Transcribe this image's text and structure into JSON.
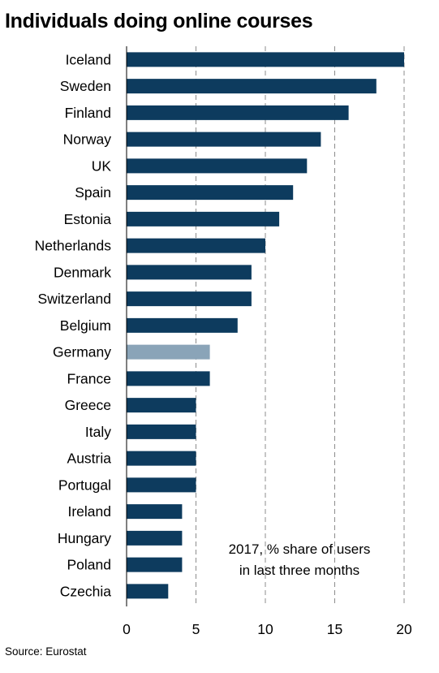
{
  "chart_data": {
    "type": "bar",
    "orientation": "horizontal",
    "title": "Individuals doing online courses",
    "categories": [
      "Iceland",
      "Sweden",
      "Finland",
      "Norway",
      "UK",
      "Spain",
      "Estonia",
      "Netherlands",
      "Denmark",
      "Switzerland",
      "Belgium",
      "Germany",
      "France",
      "Greece",
      "Italy",
      "Austria",
      "Portugal",
      "Ireland",
      "Hungary",
      "Poland",
      "Czechia"
    ],
    "values": [
      20,
      18,
      16,
      14,
      13,
      12,
      11,
      10,
      9,
      9,
      8,
      6,
      6,
      5,
      5,
      5,
      5,
      4,
      4,
      4,
      3
    ],
    "highlight_category": "Germany",
    "xlim": [
      0,
      20
    ],
    "xticks": [
      0,
      5,
      10,
      15,
      20
    ],
    "grid": "vertical dashed",
    "annotation": [
      "2017, % share of users",
      "in last three months"
    ],
    "source": "Source: Eurostat"
  },
  "colors": {
    "bar": "#0d3b5e",
    "highlight": "#8aa4b8",
    "grid": "#8c8c8c",
    "axis": "#000000"
  }
}
